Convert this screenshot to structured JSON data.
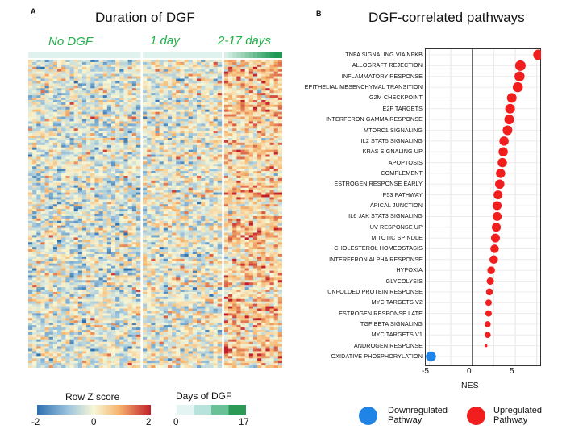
{
  "panel_a": {
    "letter": "A",
    "title": "Duration of DGF",
    "groups": [
      "No DGF",
      "1 day",
      "2-17 days"
    ],
    "row_z_legend": {
      "title": "Row Z score",
      "ticks": [
        "-2",
        "0",
        "2"
      ]
    },
    "days_legend": {
      "title": "Days of DGF",
      "ticks": [
        "0",
        "17"
      ]
    }
  },
  "panel_b": {
    "letter": "B",
    "title": "DGF-correlated pathways",
    "xaxis": {
      "label": "NES",
      "ticks": [
        "-5",
        "0",
        "5"
      ]
    },
    "legend": {
      "down": "Downregulated Pathway",
      "down_l1": "Downregulated",
      "down_l2": "Pathway",
      "up": "Upregulated Pathway",
      "up_l1": "Upregulated",
      "up_l2": "Pathway"
    }
  },
  "colors": {
    "down": "#1f84e6",
    "up": "#f21d1d",
    "group_label": "#22b04b"
  },
  "chart_data": [
    {
      "type": "heatmap",
      "title": "Duration of DGF",
      "column_groups": [
        {
          "name": "No DGF",
          "columns": 27
        },
        {
          "name": "1 day",
          "columns": 19
        },
        {
          "name": "2-17 days",
          "columns": 14
        }
      ],
      "color_scale": {
        "label": "Row Z score",
        "min": -2,
        "mid": 0,
        "max": 2,
        "colors": [
          "#2c6fb0",
          "#f7f7d6",
          "#c21f2b"
        ]
      },
      "annotation": {
        "label": "Days of DGF",
        "min": 0,
        "max": 17,
        "colors": [
          "#e8f6f4",
          "#1f9a55"
        ]
      }
    },
    {
      "type": "scatter",
      "title": "DGF-correlated pathways",
      "xlabel": "NES",
      "xlim": [
        -5.5,
        8
      ],
      "x_ticks": [
        -5,
        0,
        5
      ],
      "categories": [
        "TNFA SIGNALING VIA NFKB",
        "ALLOGRAFT REJECTION",
        "INFLAMMATORY RESPONSE",
        "EPITHELIAL MESENCHYMAL TRANSITION",
        "G2M CHECKPOINT",
        "E2F TARGETS",
        "INTERFERON GAMMA RESPONSE",
        "MTORC1 SIGNALING",
        "IL2 STAT5 SIGNALING",
        "KRAS SIGNALING UP",
        "APOPTOSIS",
        "COMPLEMENT",
        "ESTROGEN RESPONSE EARLY",
        "P53 PATHWAY",
        "APICAL JUNCTION",
        "IL6 JAK STAT3 SIGNALING",
        "UV RESPONSE UP",
        "MITOTIC SPINDLE",
        "CHOLESTEROL HOMEOSTASIS",
        "INTERFERON ALPHA RESPONSE",
        "HYPOXIA",
        "GLYCOLYSIS",
        "UNFOLDED PROTEIN RESPONSE",
        "MYC TARGETS V2",
        "ESTROGEN RESPONSE LATE",
        "TGF BETA SIGNALING",
        "MYC TARGETS V1",
        "ANDROGEN RESPONSE",
        "OXIDATIVE PHOSPHORYLATION"
      ],
      "series": [
        {
          "name": "NES",
          "values": [
            7.7,
            5.6,
            5.5,
            5.3,
            4.6,
            4.4,
            4.3,
            4.1,
            3.7,
            3.6,
            3.5,
            3.3,
            3.2,
            3.0,
            2.9,
            2.9,
            2.8,
            2.7,
            2.6,
            2.5,
            2.2,
            2.1,
            2.0,
            1.9,
            1.9,
            1.8,
            1.8,
            1.6,
            -4.8
          ],
          "size": [
            13,
            13,
            12.5,
            12.5,
            12,
            12,
            12,
            12,
            11.5,
            11.5,
            11.5,
            11.5,
            11.5,
            11,
            11,
            11,
            11,
            11,
            10.5,
            10.5,
            9.5,
            9,
            8.5,
            8,
            8,
            7.5,
            7.5,
            3.5,
            12.5
          ]
        }
      ],
      "legend": [
        "Downregulated Pathway",
        "Upregulated Pathway"
      ]
    }
  ]
}
